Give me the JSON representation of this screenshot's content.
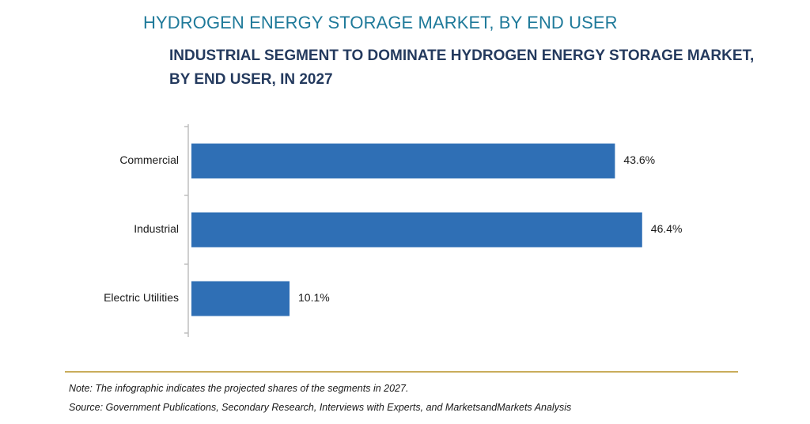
{
  "header": {
    "title": "HYDROGEN ENERGY STORAGE MARKET, BY END USER",
    "subtitle": "INDUSTRIAL SEGMENT TO DOMINATE HYDROGEN ENERGY STORAGE MARKET, BY END USER, IN 2027"
  },
  "chart_data": {
    "type": "bar",
    "orientation": "horizontal",
    "categories": [
      "Commercial",
      "Industrial",
      "Electric Utilities"
    ],
    "values": [
      43.6,
      46.4,
      10.1
    ],
    "value_labels": [
      "43.6%",
      "46.4%",
      "10.1%"
    ],
    "unit": "%",
    "xlim": [
      0,
      50
    ],
    "grid": false,
    "legend": "none",
    "bar_color": "#2f6fb5"
  },
  "footer": {
    "note": "Note: The infographic indicates the projected shares of the segments in 2027.",
    "source": "Source: Government Publications, Secondary Research, Interviews with Experts, and MarketsandMarkets Analysis"
  }
}
